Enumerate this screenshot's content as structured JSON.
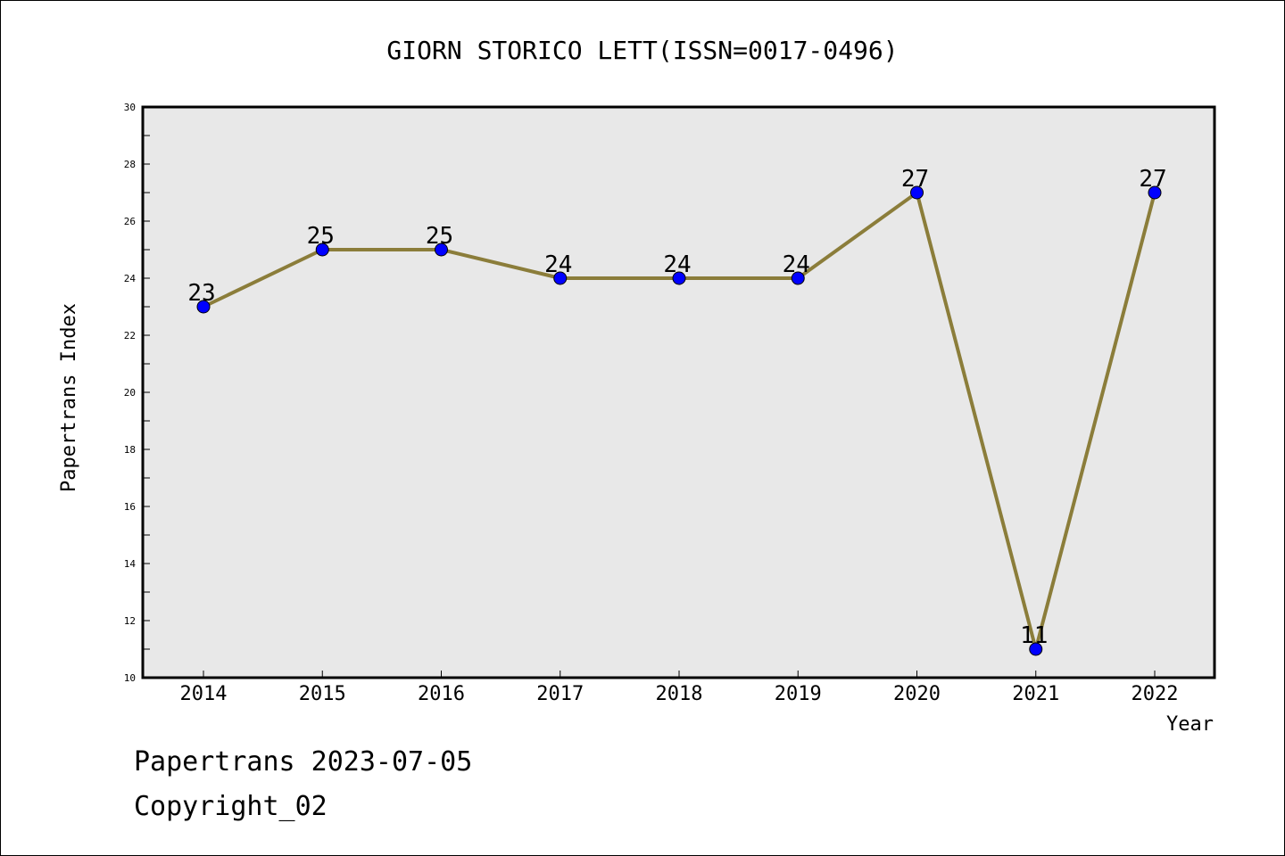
{
  "chart_data": {
    "type": "line",
    "title": "GIORN STORICO LETT(ISSN=0017-0496)",
    "xlabel": "Year",
    "ylabel": "Papertrans Index",
    "x": [
      "2014",
      "2015",
      "2016",
      "2017",
      "2018",
      "2019",
      "2020",
      "2021",
      "2022"
    ],
    "series": [
      {
        "values": [
          23,
          25,
          25,
          24,
          24,
          24,
          27,
          11,
          27
        ]
      }
    ],
    "ylim": [
      10,
      30
    ],
    "yticks": [
      10,
      12,
      14,
      16,
      18,
      20,
      22,
      24,
      26,
      28,
      30
    ],
    "grid": false,
    "legend": "none",
    "colors": {
      "line": "#8b7d3a",
      "marker": "#0000ff",
      "plot_background": "#e8e8e8"
    }
  },
  "footer": {
    "line1": "Papertrans 2023-07-05",
    "line2": "Copyright_02"
  }
}
